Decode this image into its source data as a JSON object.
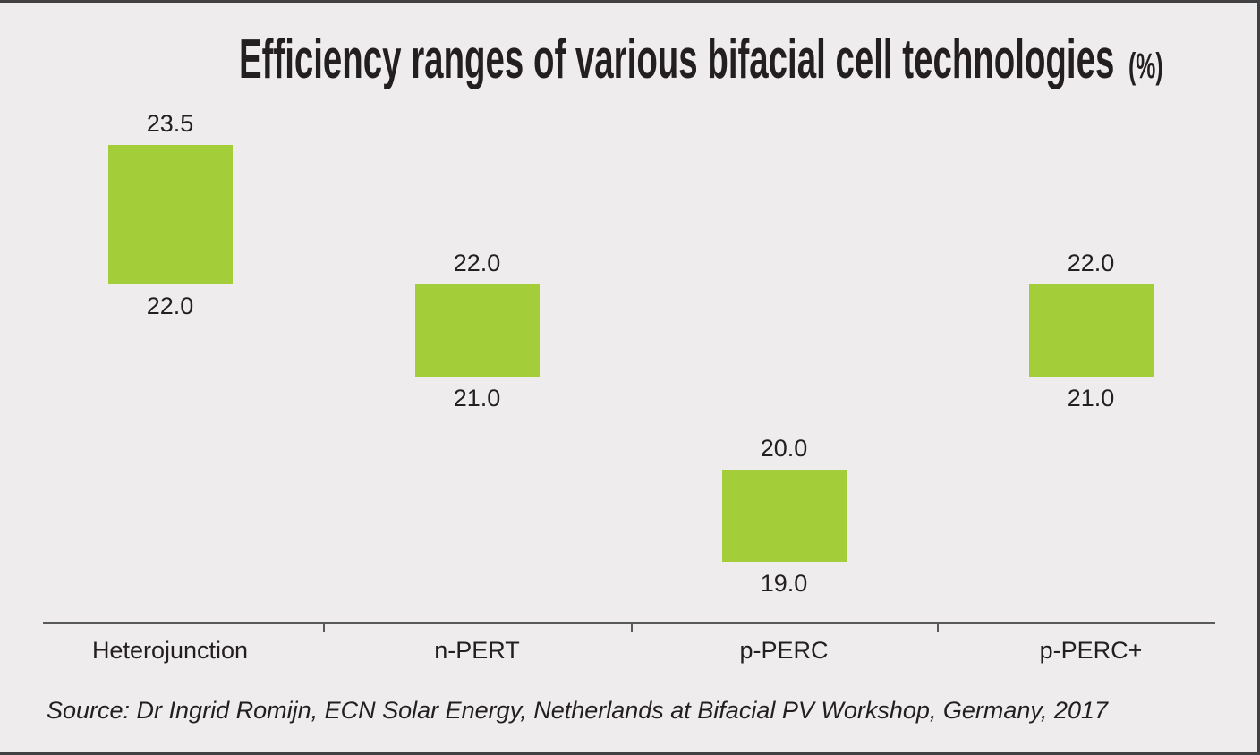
{
  "title": {
    "text": "Efficiency ranges of various bifacial cell technologies",
    "suffix": "(%)"
  },
  "source_note": "Source: Dr Ingrid Romijn, ECN Solar Energy, Netherlands at Bifacial PV Workshop, Germany, 2017",
  "colors": {
    "bar_green": "#A3CE3A",
    "background": "#EEECEC",
    "text": "#231F20",
    "axis_line": "#58595B",
    "frame_border": "#414042"
  },
  "chart_data": {
    "type": "bar",
    "subtype": "floating-range-bars",
    "title": "Efficiency ranges of various bifacial cell technologies (%)",
    "unit": "%",
    "categories": [
      "Heterojunction",
      "n-PERT",
      "p-PERC",
      "p-PERC+"
    ],
    "series": [
      {
        "name": "Efficiency range (%)",
        "points": [
          {
            "category": "Heterojunction",
            "low": 22.0,
            "high": 23.5,
            "low_label": "22.0",
            "high_label": "23.5"
          },
          {
            "category": "n-PERT",
            "low": 21.0,
            "high": 22.0,
            "low_label": "21.0",
            "high_label": "22.0"
          },
          {
            "category": "p-PERC",
            "low": 19.0,
            "high": 20.0,
            "low_label": "19.0",
            "high_label": "20.0"
          },
          {
            "category": "p-PERC+",
            "low": 21.0,
            "high": 22.0,
            "low_label": "21.0",
            "high_label": "22.0"
          }
        ]
      }
    ],
    "ylim": [
      18.3,
      24.2
    ],
    "grid": false,
    "legend": false,
    "value_labels": "high value above each bar, low value below each bar",
    "xlabel": "",
    "ylabel": ""
  }
}
